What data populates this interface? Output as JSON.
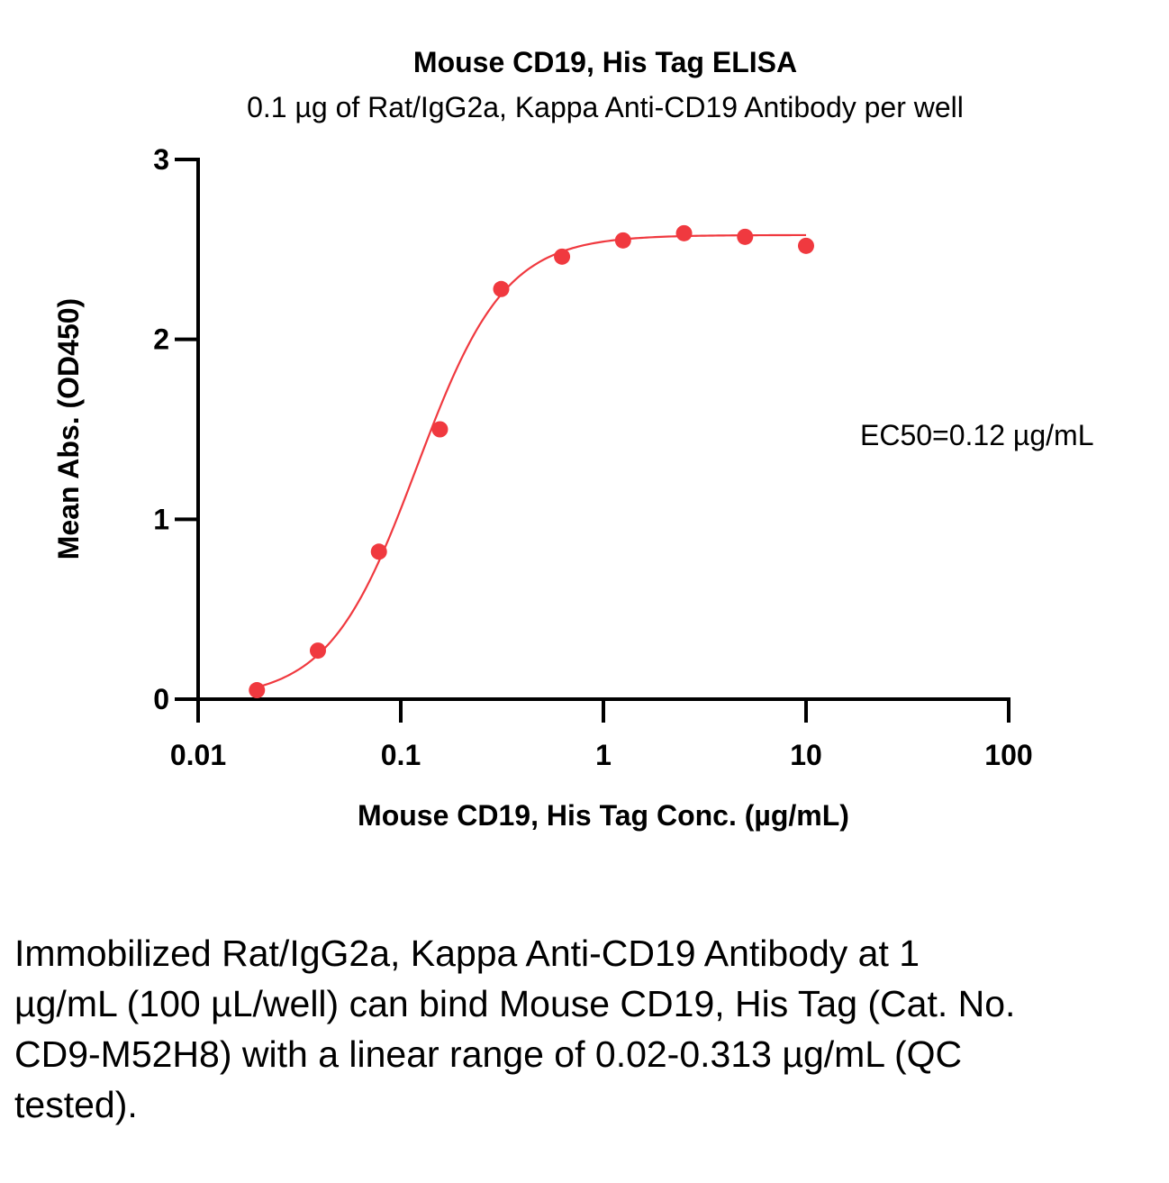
{
  "chart_data": {
    "type": "scatter",
    "title": "Mouse CD19, His Tag ELISA",
    "subtitle": "0.1 µg of Rat/IgG2a, Kappa Anti-CD19 Antibody per well",
    "xlabel": "Mouse CD19, His Tag Conc. (µg/mL)",
    "ylabel": "Mean Abs. (OD450)",
    "xscale": "log",
    "xlim": [
      0.01,
      100
    ],
    "ylim": [
      0,
      3
    ],
    "xticks": [
      "0.01",
      "0.1",
      "1",
      "10",
      "100"
    ],
    "xtick_values": [
      0.01,
      0.1,
      1,
      10,
      100
    ],
    "yticks": [
      "0",
      "1",
      "2",
      "3"
    ],
    "ytick_values": [
      0,
      1,
      2,
      3
    ],
    "grid": false,
    "annotation": "EC50=0.12 µg/mL",
    "series": [
      {
        "name": "Mean Abs.",
        "color": "#f0393f",
        "x": [
          0.0195,
          0.039,
          0.078,
          0.156,
          0.313,
          0.625,
          1.25,
          2.5,
          5,
          10
        ],
        "y": [
          0.05,
          0.27,
          0.82,
          1.5,
          2.28,
          2.46,
          2.55,
          2.59,
          2.57,
          2.52
        ]
      }
    ],
    "fit": {
      "model": "4PL",
      "bottom": 0.0,
      "top": 2.58,
      "ec50": 0.12,
      "hill": 2.0,
      "color": "#f0393f"
    }
  },
  "caption": "Immobilized Rat/IgG2a, Kappa Anti-CD19 Antibody at 1 µg/mL (100 µL/well) can bind Mouse CD19, His Tag (Cat. No. CD9-M52H8) with a linear range of 0.02-0.313 µg/mL (QC tested)."
}
